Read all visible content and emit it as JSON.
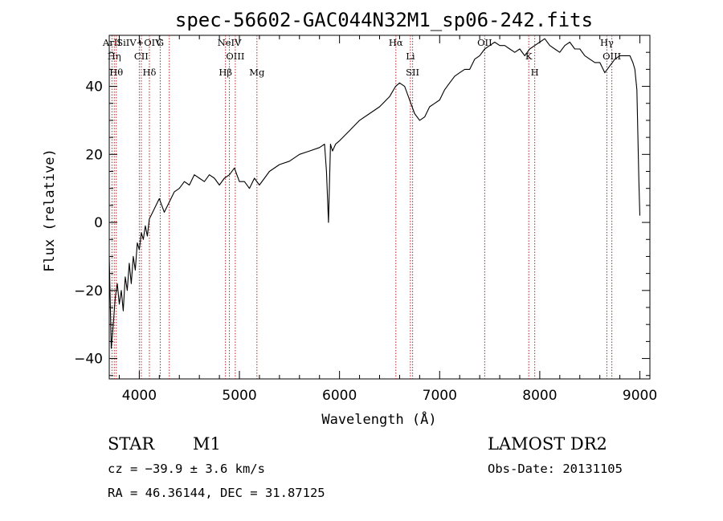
{
  "chart_data": {
    "type": "line",
    "title": "spec-56602-GAC044N32M1_sp06-242.fits",
    "xlabel": "Wavelength (Å)",
    "ylabel": "Flux (relative)",
    "xlim": [
      3700,
      9100
    ],
    "ylim": [
      -46,
      55
    ],
    "x_ticks": [
      4000,
      5000,
      6000,
      7000,
      8000,
      9000
    ],
    "y_ticks": [
      -40,
      -20,
      0,
      20,
      40
    ],
    "grid": false,
    "series": [
      {
        "x": [
          3700,
          3720,
          3740,
          3760,
          3780,
          3800,
          3820,
          3840,
          3860,
          3880,
          3900,
          3920,
          3940,
          3960,
          3980,
          4000,
          4020,
          4040,
          4060,
          4080,
          4100,
          4150,
          4200,
          4250,
          4300,
          4350,
          4400,
          4450,
          4500,
          4550,
          4600,
          4650,
          4700,
          4750,
          4800,
          4850,
          4900,
          4950,
          5000,
          5050,
          5100,
          5150,
          5200,
          5250,
          5300,
          5400,
          5500,
          5600,
          5700,
          5800,
          5850,
          5870,
          5890,
          5910,
          5930,
          5960,
          6000,
          6100,
          6200,
          6300,
          6400,
          6500,
          6560,
          6600,
          6650,
          6700,
          6750,
          6800,
          6850,
          6900,
          6950,
          7000,
          7050,
          7100,
          7150,
          7200,
          7250,
          7300,
          7350,
          7400,
          7450,
          7500,
          7550,
          7600,
          7650,
          7700,
          7750,
          7800,
          7850,
          7900,
          7950,
          8000,
          8050,
          8100,
          8150,
          8200,
          8250,
          8300,
          8350,
          8400,
          8450,
          8500,
          8550,
          8600,
          8650,
          8700,
          8750,
          8800,
          8850,
          8900,
          8930,
          8950,
          8970,
          8990,
          9000
        ],
        "y": [
          -10,
          -37,
          -30,
          -22,
          -18,
          -24,
          -20,
          -26,
          -16,
          -20,
          -12,
          -18,
          -10,
          -14,
          -6,
          -8,
          -3,
          -5,
          -1,
          -4,
          1,
          4,
          7,
          3,
          6,
          9,
          10,
          12,
          11,
          14,
          13,
          12,
          14,
          13,
          11,
          13,
          14,
          16,
          12,
          12,
          10,
          13,
          11,
          13,
          15,
          17,
          18,
          20,
          21,
          22,
          23,
          15,
          0,
          23,
          21,
          23,
          24,
          27,
          30,
          32,
          34,
          37,
          40,
          41,
          40,
          36,
          32,
          30,
          31,
          34,
          35,
          36,
          39,
          41,
          43,
          44,
          45,
          45,
          48,
          49,
          51,
          52,
          53,
          52,
          52,
          51,
          50,
          51,
          49,
          51,
          52,
          53,
          54,
          52,
          51,
          50,
          52,
          53,
          51,
          51,
          49,
          48,
          47,
          47,
          44,
          46,
          48,
          49,
          49,
          49,
          47,
          45,
          39,
          12,
          2
        ]
      }
    ],
    "line_marks": [
      {
        "wavelength": 3727,
        "label": "ArII"
      },
      {
        "wavelength": 3750,
        "label": "Hη"
      },
      {
        "wavelength": 3770,
        "label": "Hθ"
      },
      {
        "wavelength": 4000,
        "label": "SiIV+OIV"
      },
      {
        "wavelength": 4020,
        "label": "CII"
      },
      {
        "wavelength": 4101,
        "label": "Hδ"
      },
      {
        "wavelength": 4209,
        "label": "G"
      },
      {
        "wavelength": 4300,
        "label": ""
      },
      {
        "wavelength": 4861,
        "label": "Hβ"
      },
      {
        "wavelength": 4900,
        "label": "NeIV"
      },
      {
        "wavelength": 4959,
        "label": "OIII"
      },
      {
        "wavelength": 5175,
        "label": "Mg"
      },
      {
        "wavelength": 6563,
        "label": "Hα"
      },
      {
        "wavelength": 6708,
        "label": "Li"
      },
      {
        "wavelength": 6730,
        "label": "SII"
      },
      {
        "wavelength": 7450,
        "label": "OII"
      },
      {
        "wavelength": 7890,
        "label": "K"
      },
      {
        "wavelength": 7950,
        "label": "H"
      },
      {
        "wavelength": 8670,
        "label": "Hγ"
      },
      {
        "wavelength": 8720,
        "label": "OIII"
      }
    ]
  },
  "info": {
    "obj_class": "STAR",
    "subclass": "M1",
    "survey": "LAMOST DR2",
    "cz": "cz = −39.9 ± 3.6 km/s",
    "obs_date": "Obs-Date: 20131105",
    "radec": "RA =  46.36144, DEC =  31.87125"
  },
  "colors": {
    "spectrum": "#000000",
    "line_marks": "#b22222",
    "axes": "#000000"
  }
}
